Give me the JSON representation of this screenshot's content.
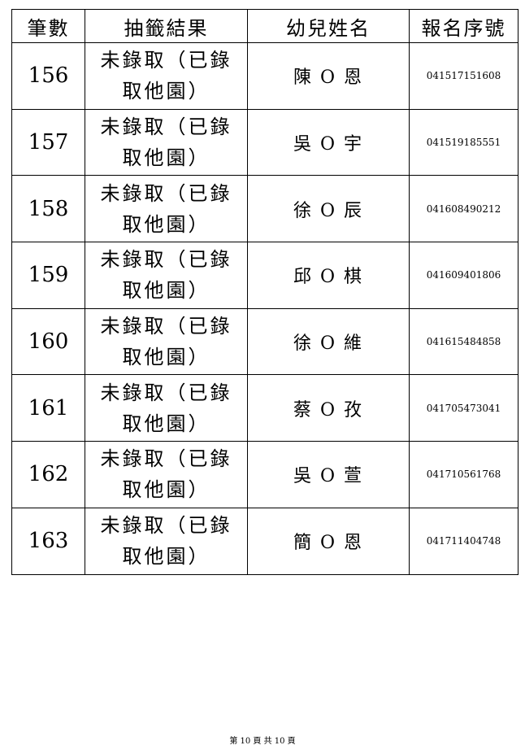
{
  "headers": [
    "筆數",
    "抽籤結果",
    "幼兒姓名",
    "報名序號"
  ],
  "rows": [
    {
      "no": "156",
      "result": [
        "未錄取（已錄",
        "取他園）"
      ],
      "name": "陳 O 恩",
      "serial": "041517151608"
    },
    {
      "no": "157",
      "result": [
        "未錄取（已錄",
        "取他園）"
      ],
      "name": "吳 O 宇",
      "serial": "041519185551"
    },
    {
      "no": "158",
      "result": [
        "未錄取（已錄",
        "取他園）"
      ],
      "name": "徐 O 辰",
      "serial": "041608490212"
    },
    {
      "no": "159",
      "result": [
        "未錄取（已錄",
        "取他園）"
      ],
      "name": "邱 O 棋",
      "serial": "041609401806"
    },
    {
      "no": "160",
      "result": [
        "未錄取（已錄",
        "取他園）"
      ],
      "name": "徐 O 維",
      "serial": "041615484858"
    },
    {
      "no": "161",
      "result": [
        "未錄取（已錄",
        "取他園）"
      ],
      "name": "蔡 O 孜",
      "serial": "041705473041"
    },
    {
      "no": "162",
      "result": [
        "未錄取（已錄",
        "取他園）"
      ],
      "name": "吳 O 萱",
      "serial": "041710561768"
    },
    {
      "no": "163",
      "result": [
        "未錄取（已錄",
        "取他園）"
      ],
      "name": "簡 O 恩",
      "serial": "041711404748"
    }
  ],
  "footer": "第 10 頁 共 10 頁"
}
